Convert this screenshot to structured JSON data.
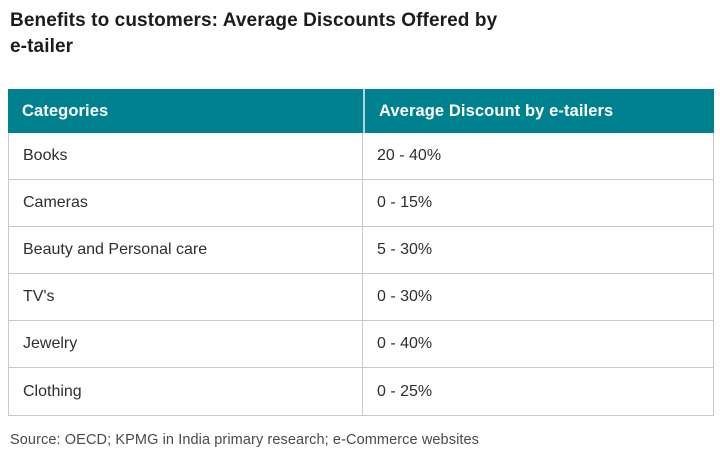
{
  "page": {
    "title_line1": "Benefits to customers: Average Discounts Offered by",
    "title_line2": "e-tailer",
    "source": "Source: OECD; KPMG in India primary research; e-Commerce websites"
  },
  "table": {
    "headers": [
      "Categories",
      "Average Discount by e-tailers"
    ],
    "rows": [
      {
        "category": "Books",
        "discount": "20 - 40%"
      },
      {
        "category": "Cameras",
        "discount": "0 - 15%"
      },
      {
        "category": "Beauty and Personal care",
        "discount": "5 - 30%"
      },
      {
        "category": "TV's",
        "discount": "0 - 30%"
      },
      {
        "category": "Jewelry",
        "discount": "0 - 40%"
      },
      {
        "category": "Clothing",
        "discount": "0 - 25%"
      }
    ]
  },
  "colors": {
    "header_bg": "#00818F",
    "header_divider": "#AED6DC",
    "header_text": "#FFFFFF",
    "row_border": "#C9C9C9",
    "body_text": "#2E2E2E",
    "title_text": "#1C1C1C",
    "source_text": "#4A4A4A",
    "background": "#FFFFFF"
  },
  "chart_data": {
    "type": "table",
    "title": "Benefits to customers: Average Discounts Offered by e-tailer",
    "columns": [
      "Categories",
      "Average Discount by e-tailers"
    ],
    "categories": [
      "Books",
      "Cameras",
      "Beauty and Personal care",
      "TV's",
      "Jewelry",
      "Clothing"
    ],
    "values": [
      "20 - 40%",
      "0 - 15%",
      "5 - 30%",
      "0 - 30%",
      "0 - 40%",
      "0 - 25%"
    ],
    "discount_ranges_pct": [
      [
        20,
        40
      ],
      [
        0,
        15
      ],
      [
        5,
        30
      ],
      [
        0,
        30
      ],
      [
        0,
        40
      ],
      [
        0,
        25
      ]
    ],
    "source": "Source: OECD; KPMG in India primary research; e-Commerce websites",
    "layout": {
      "header_style": "teal-filled",
      "gridlines": true,
      "legend": "none"
    }
  }
}
